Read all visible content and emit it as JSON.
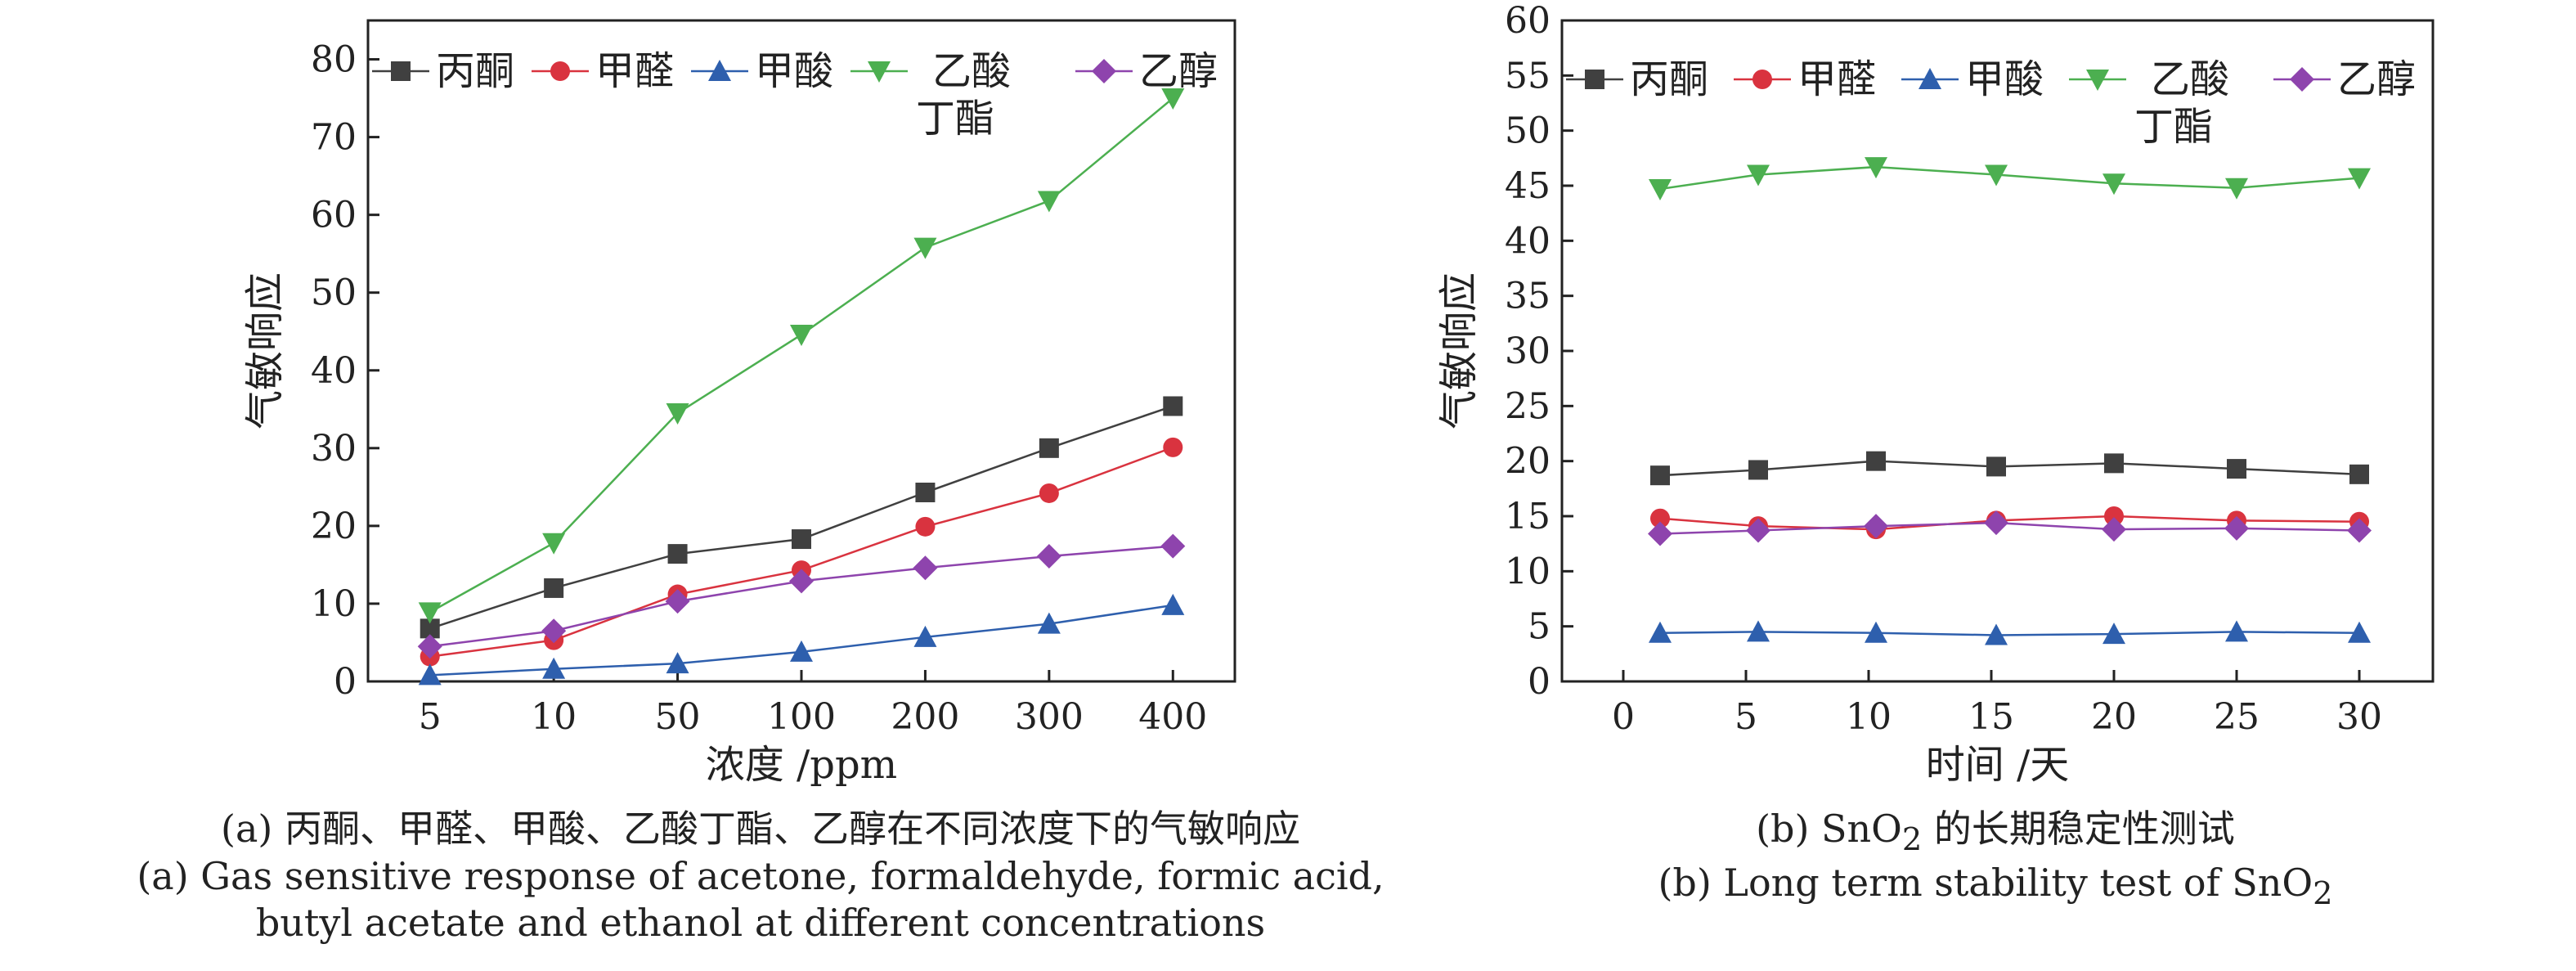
{
  "chart_data": [
    {
      "type": "line",
      "categories": [
        "5",
        "10",
        "50",
        "100",
        "200",
        "300",
        "400"
      ],
      "xlabel": "浓度 /ppm",
      "ylabel": "气敏响应",
      "ylim": [
        0,
        85
      ],
      "yticks": [
        0,
        10,
        20,
        30,
        40,
        50,
        60,
        70,
        80
      ],
      "legend_position": "top",
      "series": [
        {
          "name": "丙酮",
          "color": "#404040",
          "marker": "square",
          "values": [
            6.8,
            12.0,
            16.4,
            18.3,
            24.3,
            30.0,
            35.4
          ]
        },
        {
          "name": "甲醛",
          "color": "#d9333f",
          "marker": "circle",
          "values": [
            3.2,
            5.3,
            11.2,
            14.3,
            19.9,
            24.2,
            30.1
          ]
        },
        {
          "name": "甲酸",
          "color": "#2e5fad",
          "marker": "triangle-up",
          "values": [
            0.8,
            1.6,
            2.3,
            3.8,
            5.7,
            7.4,
            9.8
          ]
        },
        {
          "name": "乙酸丁酯",
          "color": "#4caf50",
          "marker": "triangle-down",
          "values": [
            8.9,
            17.8,
            34.5,
            44.6,
            55.8,
            61.8,
            75.0
          ]
        },
        {
          "name": "乙醇",
          "color": "#8e44ad",
          "marker": "diamond",
          "values": [
            4.5,
            6.5,
            10.3,
            12.9,
            14.6,
            16.1,
            17.4
          ]
        }
      ],
      "caption_cn": "(a) 丙酮、甲醛、甲酸、乙酸丁酯、乙醇在不同浓度下的气敏响应",
      "caption_en_1": "(a) Gas sensitive response of acetone, formaldehyde, formic acid,",
      "caption_en_2": "butyl acetate and ethanol at different concentrations"
    },
    {
      "type": "line",
      "xlabel": "时间 /天",
      "ylabel": "气敏响应",
      "xlim": [
        -2.5,
        33
      ],
      "xticks": [
        0,
        5,
        10,
        15,
        20,
        25,
        30
      ],
      "ylim": [
        0,
        60
      ],
      "yticks": [
        0,
        5,
        10,
        15,
        20,
        25,
        30,
        35,
        40,
        45,
        50,
        55,
        60
      ],
      "legend_position": "top",
      "x": [
        1.5,
        5.5,
        10.3,
        15.2,
        20,
        25,
        30
      ],
      "series": [
        {
          "name": "丙酮",
          "color": "#404040",
          "marker": "square",
          "values": [
            18.7,
            19.2,
            20.0,
            19.5,
            19.8,
            19.3,
            18.8
          ]
        },
        {
          "name": "甲醛",
          "color": "#d9333f",
          "marker": "circle",
          "values": [
            14.8,
            14.1,
            13.8,
            14.6,
            15.0,
            14.6,
            14.5
          ]
        },
        {
          "name": "甲酸",
          "color": "#2e5fad",
          "marker": "triangle-up",
          "values": [
            4.4,
            4.5,
            4.4,
            4.2,
            4.3,
            4.5,
            4.4
          ]
        },
        {
          "name": "乙酸丁酯",
          "color": "#4caf50",
          "marker": "triangle-down",
          "values": [
            44.7,
            46.0,
            46.7,
            46.0,
            45.2,
            44.8,
            45.7
          ]
        },
        {
          "name": "乙醇",
          "color": "#8e44ad",
          "marker": "diamond",
          "values": [
            13.4,
            13.7,
            14.1,
            14.4,
            13.8,
            13.9,
            13.7
          ]
        }
      ],
      "caption_cn_prefix": "(b) SnO",
      "caption_cn_sub": "2",
      "caption_cn_suffix": " 的长期稳定性测试",
      "caption_en_prefix": "(b) Long term stability test of SnO",
      "caption_en_sub": "2"
    }
  ]
}
